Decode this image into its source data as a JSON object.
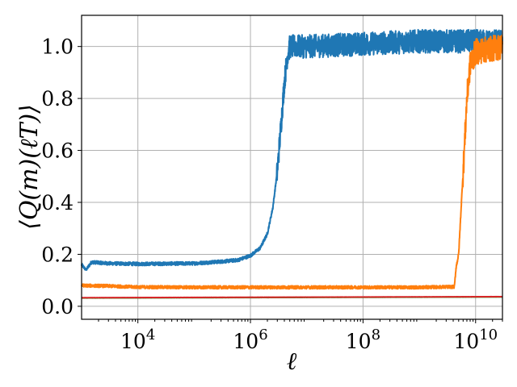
{
  "chart_data": {
    "type": "line",
    "title": "",
    "xlabel": "ℓ",
    "ylabel": "⟨Q(m)(ℓT)⟩",
    "xscale": "log",
    "xlim": [
      1000,
      30000000000
    ],
    "ylim": [
      -0.05,
      1.12
    ],
    "grid": true,
    "legend": "none",
    "x_ticks": [
      {
        "value": 10000,
        "base": "10",
        "exp": "4"
      },
      {
        "value": 1000000,
        "base": "10",
        "exp": "6"
      },
      {
        "value": 100000000,
        "base": "10",
        "exp": "8"
      },
      {
        "value": 10000000000,
        "base": "10",
        "exp": "10"
      }
    ],
    "y_ticks": [
      {
        "value": 0.0,
        "label": "0.0"
      },
      {
        "value": 0.2,
        "label": "0.2"
      },
      {
        "value": 0.4,
        "label": "0.4"
      },
      {
        "value": 0.6,
        "label": "0.6"
      },
      {
        "value": 0.8,
        "label": "0.8"
      },
      {
        "value": 1.0,
        "label": "1.0"
      }
    ],
    "series": [
      {
        "color": "#1f77b4",
        "noise": 0.045,
        "points": [
          [
            1000,
            0.16
          ],
          [
            1200,
            0.14
          ],
          [
            1500,
            0.17
          ],
          [
            3000,
            0.165
          ],
          [
            10000,
            0.163
          ],
          [
            100000,
            0.165
          ],
          [
            300000,
            0.172
          ],
          [
            600000,
            0.178
          ],
          [
            1000000,
            0.195
          ],
          [
            1500000,
            0.225
          ],
          [
            2000000,
            0.28
          ],
          [
            2500000,
            0.38
          ],
          [
            3000000,
            0.52
          ],
          [
            3500000,
            0.7
          ],
          [
            4000000,
            0.86
          ],
          [
            4500000,
            0.96
          ],
          [
            5000000,
            1.0
          ],
          [
            10000000,
            1.0
          ],
          [
            100000000,
            1.01
          ],
          [
            1000000000,
            1.02
          ],
          [
            30000000000,
            1.02
          ]
        ]
      },
      {
        "color": "#ff7f0e",
        "noise": 0.05,
        "points": [
          [
            1000,
            0.08
          ],
          [
            3000,
            0.078
          ],
          [
            10000,
            0.074
          ],
          [
            100000,
            0.073
          ],
          [
            10000000,
            0.073
          ],
          [
            1000000000,
            0.073
          ],
          [
            4200000000,
            0.075
          ],
          [
            4500000000,
            0.15
          ],
          [
            5000000000,
            0.2
          ],
          [
            5600000000,
            0.4
          ],
          [
            6300000000,
            0.6
          ],
          [
            7000000000,
            0.8
          ],
          [
            8000000000,
            0.93
          ],
          [
            10000000000,
            0.98
          ],
          [
            30000000000,
            1.0
          ]
        ]
      },
      {
        "color": "#2ca02c",
        "noise": 0.002,
        "points": [
          [
            1000,
            0.032
          ],
          [
            30000000000,
            0.036
          ]
        ]
      },
      {
        "color": "#d62728",
        "noise": 0.002,
        "points": [
          [
            1000,
            0.033
          ],
          [
            30000000000,
            0.037
          ]
        ]
      }
    ]
  }
}
